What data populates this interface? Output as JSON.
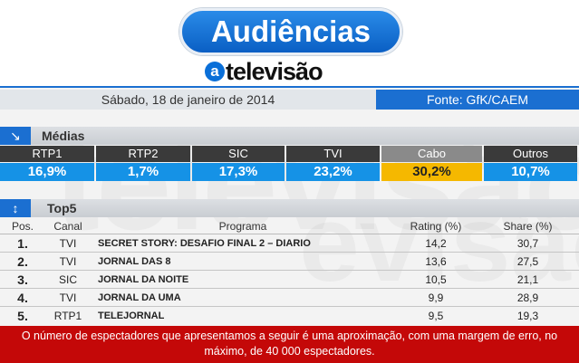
{
  "header": {
    "title": "Audiências",
    "logo_mark": "a",
    "logo_text": "televisão",
    "date": "Sábado, 18 de janeiro de 2014",
    "source": "Fonte: GfK/CAEM"
  },
  "medias": {
    "section_icon": "arrow-down-right-icon",
    "section_glyph": "↘",
    "section_label": "Médias",
    "channels": [
      {
        "name": "RTP1",
        "value": "16,9%"
      },
      {
        "name": "RTP2",
        "value": "1,7%"
      },
      {
        "name": "SIC",
        "value": "17,3%"
      },
      {
        "name": "TVI",
        "value": "23,2%"
      },
      {
        "name": "Cabo",
        "value": "30,2%"
      },
      {
        "name": "Outros",
        "value": "10,7%"
      }
    ],
    "highlight_color": "#f5b800",
    "value_color": "#1592e6"
  },
  "top5": {
    "section_icon": "arrow-up-down-icon",
    "section_glyph": "↕",
    "section_label": "Top5",
    "columns": {
      "pos": "Pos.",
      "canal": "Canal",
      "programa": "Programa",
      "rating": "Rating (%)",
      "share": "Share (%)"
    },
    "rows": [
      {
        "pos": "1.",
        "canal": "TVI",
        "programa": "SECRET STORY: DESAFIO FINAL 2 – DIARIO",
        "rating": "14,2",
        "share": "30,7"
      },
      {
        "pos": "2.",
        "canal": "TVI",
        "programa": "JORNAL DAS 8",
        "rating": "13,6",
        "share": "27,5"
      },
      {
        "pos": "3.",
        "canal": "SIC",
        "programa": "JORNAL DA NOITE",
        "rating": "10,5",
        "share": "21,1"
      },
      {
        "pos": "4.",
        "canal": "TVI",
        "programa": "JORNAL DA UMA",
        "rating": "9,9",
        "share": "28,9"
      },
      {
        "pos": "5.",
        "canal": "RTP1",
        "programa": "TELEJORNAL",
        "rating": "9,5",
        "share": "19,3"
      }
    ]
  },
  "footer": {
    "note": "O número de espectadores que apresentamos a seguir é uma aproximação, com uma margem de erro, no máximo, de 40 000 espectadores."
  },
  "colors": {
    "accent_blue": "#1b6fd1",
    "footer_red": "#c40808"
  }
}
